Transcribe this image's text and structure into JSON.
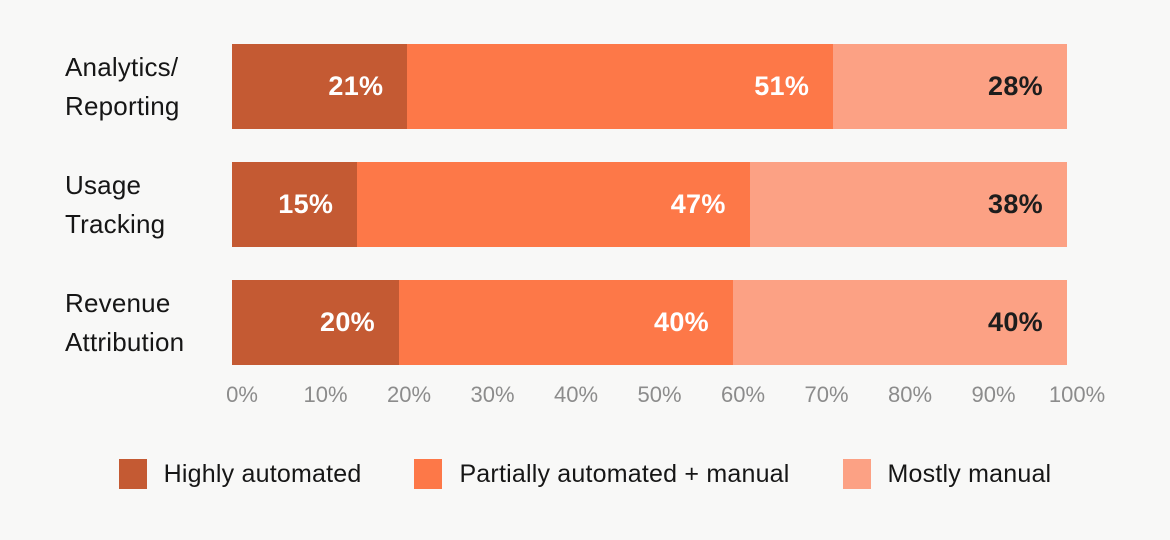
{
  "chart_data": {
    "type": "bar",
    "orientation": "horizontal",
    "stacked": true,
    "title": "",
    "xlabel": "",
    "ylabel": "",
    "xlim": [
      0,
      100
    ],
    "grid": false,
    "legend_position": "bottom",
    "value_suffix": "%",
    "categories": [
      "Analytics/Reporting",
      "Usage Tracking",
      "Revenue Attribution"
    ],
    "rows": [
      {
        "label_lines": [
          "Analytics/",
          "Reporting"
        ],
        "values": [
          21,
          51,
          28
        ],
        "display_values": [
          "21%",
          "51%",
          "28%"
        ]
      },
      {
        "label_lines": [
          "Usage",
          "Tracking"
        ],
        "values": [
          15,
          47,
          38
        ],
        "display_values": [
          "15%",
          "47%",
          "38%"
        ]
      },
      {
        "label_lines": [
          "Revenue",
          "Attribution"
        ],
        "values": [
          20,
          40,
          40
        ],
        "display_values": [
          "20%",
          "40%",
          "40%"
        ]
      }
    ],
    "series": [
      {
        "name": "Highly automated",
        "color": "#c45a33",
        "text_color": "#ffffff",
        "values": [
          21,
          15,
          20
        ]
      },
      {
        "name": "Partially automated + manual",
        "color": "#fd7848",
        "text_color": "#ffffff",
        "values": [
          51,
          47,
          40
        ]
      },
      {
        "name": "Mostly manual",
        "color": "#fca184",
        "text_color": "#1d1d1d",
        "values": [
          28,
          38,
          40
        ]
      }
    ],
    "axis_ticks": [
      "0%",
      "10%",
      "20%",
      "30%",
      "40%",
      "50%",
      "60%",
      "70%",
      "80%",
      "90%",
      "100%"
    ]
  },
  "colors": {
    "background": "#f8f8f7",
    "category_text": "#161616",
    "axis_text": "#8c8c8c",
    "legend_text": "#161616"
  }
}
